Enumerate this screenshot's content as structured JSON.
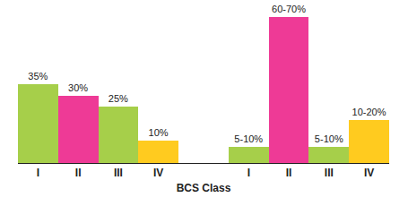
{
  "chart_data": {
    "type": "bar",
    "x_label": "BCS Class",
    "categories": [
      "I",
      "II",
      "III",
      "IV",
      "I",
      "II",
      "III",
      "IV"
    ],
    "values": [
      35,
      30,
      25,
      10,
      7,
      65,
      7,
      19
    ],
    "value_labels": [
      "35%",
      "30%",
      "25%",
      "10%",
      "5-10%",
      "60-70%",
      "5-10%",
      "10-20%"
    ],
    "colors": [
      "#a6cf4a",
      "#ee3a96",
      "#a6cf4a",
      "#ffcb1f",
      "#a6cf4a",
      "#ee3a96",
      "#a6cf4a",
      "#ffcb1f"
    ],
    "ylim": [
      0,
      70
    ],
    "data_labels": true,
    "tick_labels": "x",
    "grid": false
  }
}
